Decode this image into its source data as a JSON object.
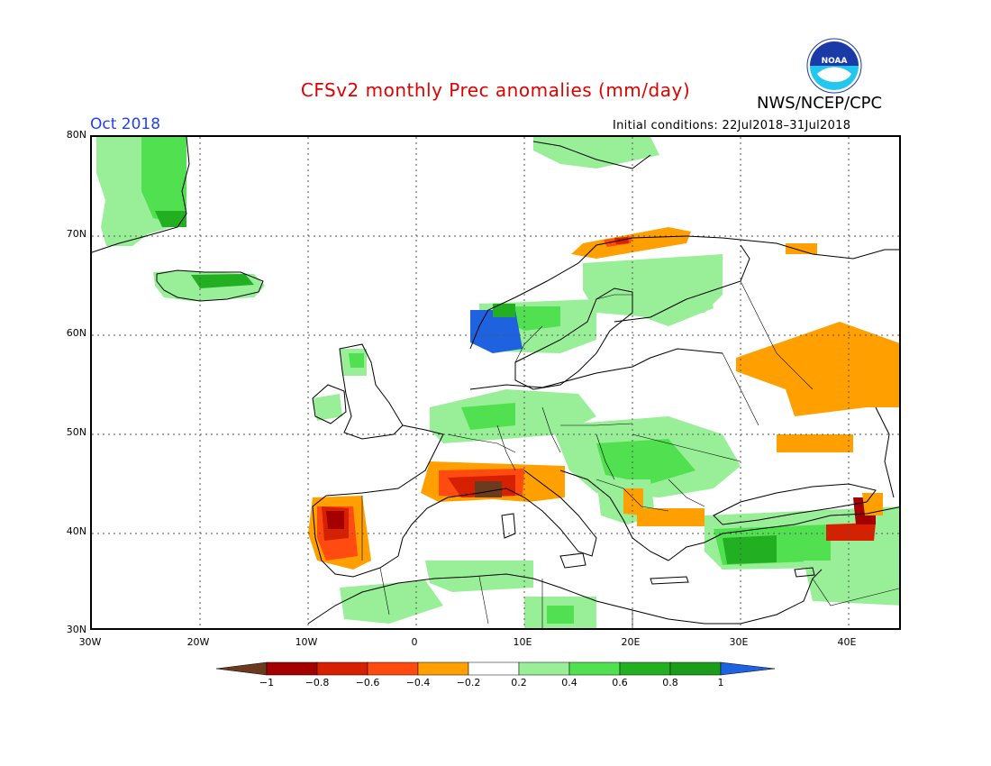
{
  "header": {
    "title": "CFSv2 monthly Prec anomalies (mm/day)",
    "agency": "NWS/NCEP/CPC",
    "month": "Oct 2018",
    "initial_conditions": "Initial conditions: 22Jul2018–31Jul2018",
    "logo_text": "NOAA"
  },
  "axes": {
    "lat_labels": [
      "80N",
      "70N",
      "60N",
      "50N",
      "40N",
      "30N"
    ],
    "lon_labels": [
      "30W",
      "20W",
      "10W",
      "0",
      "10E",
      "20E",
      "30E",
      "40E"
    ]
  },
  "colorbar": {
    "tick_labels": [
      "−1",
      "−0.8",
      "−0.6",
      "−0.4",
      "−0.2",
      "0.2",
      "0.4",
      "0.6",
      "0.8",
      "1"
    ],
    "colors": [
      "#6b3a1f",
      "#a50000",
      "#d62000",
      "#ff4a10",
      "#ffa000",
      "#ffffff",
      "#98ef98",
      "#50e050",
      "#22b022",
      "#1a9e1a",
      "#1f62e0"
    ]
  },
  "anomaly_colors": {
    "green_light": "#98ef98",
    "green_mid": "#50e050",
    "green_dark": "#22b022",
    "blue": "#1f62e0",
    "orange": "#ffa000",
    "red_orange": "#ff4a10",
    "red": "#d62000",
    "dark_red": "#a50000",
    "brown": "#6b3a1f"
  }
}
